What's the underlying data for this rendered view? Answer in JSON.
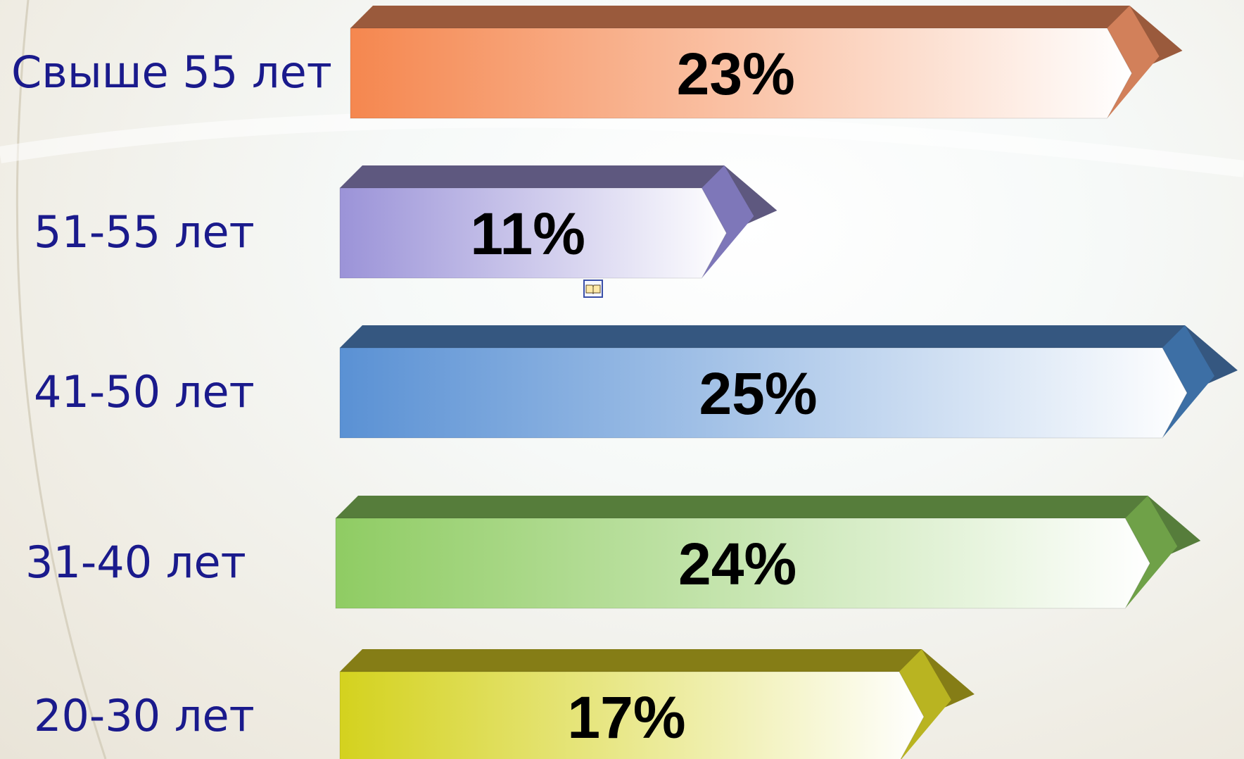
{
  "chart_data": {
    "type": "bar",
    "orientation": "horizontal",
    "categories": [
      "Свыше 55 лет",
      "51-55 лет",
      "41-50 лет",
      "31-40 лет",
      "20-30 лет"
    ],
    "values": [
      23,
      11,
      25,
      24,
      17
    ],
    "value_labels": [
      "23%",
      "11%",
      "25%",
      "24%",
      "17%"
    ],
    "unit": "%",
    "colors": [
      "#f5874f",
      "#9b93d8",
      "#5a91d4",
      "#8fcc63",
      "#d4d21e"
    ],
    "top_colors": [
      "#9a5a3c",
      "#5e587f",
      "#355780",
      "#567d3b",
      "#857d16"
    ],
    "tip_colors": [
      "#d2805a",
      "#7e77b9",
      "#3d6fa5",
      "#6fa148",
      "#b9b421"
    ],
    "legend": false,
    "grid": false
  },
  "icons": {
    "note": "open-book-icon"
  }
}
